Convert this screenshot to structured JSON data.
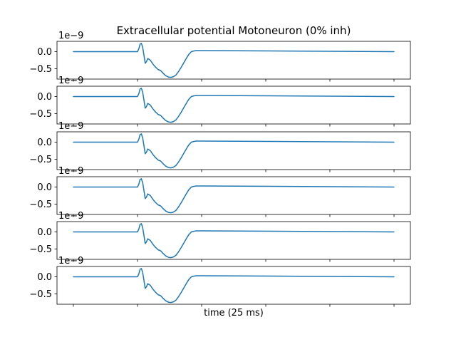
{
  "chart_data": {
    "type": "line",
    "title": "Extracellular potential Motoneuron (0% inh)",
    "xlabel": "time (25 ms)",
    "ylabel": "",
    "subplot_count": 6,
    "x_tick_labels_visible": false,
    "x_tick_count": 6,
    "color": "#1f77b4",
    "grid": false,
    "legend": "none",
    "y_offset_text": "1e−9",
    "y_ticks": [
      {
        "value": 0.0,
        "label": "0.0"
      },
      {
        "value": -0.5,
        "label": "−0.5"
      }
    ],
    "xlim": [
      0,
      25
    ],
    "ylim": [
      -0.8,
      0.3
    ],
    "series": [
      {
        "x": [
          0,
          5.0,
          5.1,
          5.2,
          5.3,
          5.4,
          5.5,
          5.6,
          5.7,
          5.8,
          6.0,
          6.2,
          6.4,
          6.6,
          6.8,
          7.0,
          7.2,
          7.4,
          7.6,
          7.8,
          8.0,
          8.2,
          8.4,
          8.6,
          8.8,
          9.0,
          9.2,
          9.4,
          9.6,
          9.8,
          10.0,
          25
        ],
        "y": [
          0,
          0,
          0.08,
          0.22,
          0.24,
          0.13,
          -0.1,
          -0.34,
          -0.29,
          -0.2,
          -0.25,
          -0.36,
          -0.45,
          -0.52,
          -0.55,
          -0.63,
          -0.7,
          -0.74,
          -0.75,
          -0.73,
          -0.68,
          -0.58,
          -0.46,
          -0.33,
          -0.2,
          -0.08,
          0.0,
          0.02,
          0.03,
          0.03,
          0.03,
          0.0
        ]
      }
    ]
  }
}
